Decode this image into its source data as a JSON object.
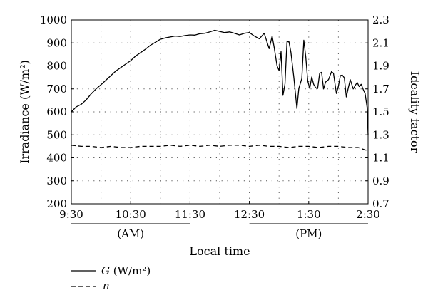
{
  "chart_data": {
    "type": "line",
    "title": "",
    "xlabel": "Local time",
    "ylabel_left": "Irradiance (W/m²)",
    "ylabel_right": "Ideality factor",
    "grid": true,
    "legend_position": "bottom-left",
    "x_ticks": [
      "9:30",
      "10:30",
      "11:30",
      "12:30",
      "1:30",
      "2:30"
    ],
    "x_range_minutes": [
      0,
      300
    ],
    "period_labels": [
      {
        "label": "(AM)",
        "start_min": 0,
        "end_min": 120
      },
      {
        "label": "(PM)",
        "start_min": 180,
        "end_min": 300
      }
    ],
    "y_left": {
      "range": [
        200,
        1000
      ],
      "ticks": [
        "200",
        "300",
        "400",
        "500",
        "600",
        "700",
        "800",
        "900",
        "1000"
      ]
    },
    "y_right": {
      "range": [
        0.7,
        2.3
      ],
      "ticks": [
        "0.7",
        "0.9",
        "1.1",
        "1.3",
        "1.5",
        "1.7",
        "1.9",
        "2.1",
        "2.3"
      ]
    },
    "series": [
      {
        "name": "G (W/m²)",
        "axis": "left",
        "style": "solid",
        "time_minutes": [
          0,
          5,
          10,
          15,
          20,
          25,
          30,
          35,
          40,
          45,
          50,
          55,
          60,
          65,
          70,
          75,
          80,
          85,
          90,
          95,
          100,
          105,
          110,
          115,
          120,
          125,
          130,
          135,
          140,
          145,
          150,
          155,
          160,
          165,
          170,
          175,
          180,
          185,
          190,
          195,
          200,
          203,
          205,
          208,
          210,
          212,
          214,
          216,
          218,
          220,
          222,
          225,
          228,
          230,
          233,
          235,
          237,
          239,
          241,
          243,
          245,
          247,
          249,
          251,
          253,
          255,
          257,
          260,
          263,
          265,
          268,
          270,
          272,
          274,
          276,
          278,
          280,
          282,
          285,
          287,
          289,
          291,
          293,
          295,
          297,
          299,
          300
        ],
        "values": [
          600,
          622,
          633,
          652,
          678,
          700,
          718,
          738,
          758,
          778,
          793,
          808,
          823,
          843,
          858,
          873,
          890,
          903,
          916,
          922,
          926,
          930,
          928,
          932,
          935,
          934,
          940,
          942,
          948,
          955,
          950,
          945,
          948,
          942,
          935,
          942,
          945,
          930,
          918,
          942,
          875,
          930,
          882,
          800,
          780,
          862,
          672,
          722,
          905,
          905,
          860,
          748,
          615,
          702,
          745,
          912,
          840,
          735,
          702,
          752,
          720,
          705,
          702,
          768,
          772,
          700,
          730,
          740,
          775,
          768,
          680,
          712,
          758,
          760,
          748,
          665,
          705,
          740,
          700,
          715,
          728,
          710,
          720,
          698,
          680,
          620,
          500
        ]
      },
      {
        "name": "n",
        "axis": "right",
        "style": "dashed",
        "time_minutes": [
          0,
          10,
          20,
          30,
          40,
          50,
          60,
          70,
          80,
          90,
          100,
          110,
          120,
          130,
          140,
          150,
          160,
          170,
          180,
          190,
          200,
          210,
          220,
          230,
          240,
          250,
          260,
          270,
          280,
          290,
          300
        ],
        "values": [
          1.21,
          1.2,
          1.2,
          1.19,
          1.2,
          1.19,
          1.19,
          1.2,
          1.2,
          1.2,
          1.21,
          1.2,
          1.21,
          1.2,
          1.21,
          1.2,
          1.21,
          1.21,
          1.2,
          1.21,
          1.2,
          1.2,
          1.19,
          1.2,
          1.2,
          1.19,
          1.2,
          1.2,
          1.19,
          1.19,
          1.16
        ]
      }
    ]
  },
  "legend": {
    "items": [
      {
        "symbol": "G",
        "rest": " (W/m²)"
      },
      {
        "symbol": "n",
        "rest": ""
      }
    ]
  }
}
